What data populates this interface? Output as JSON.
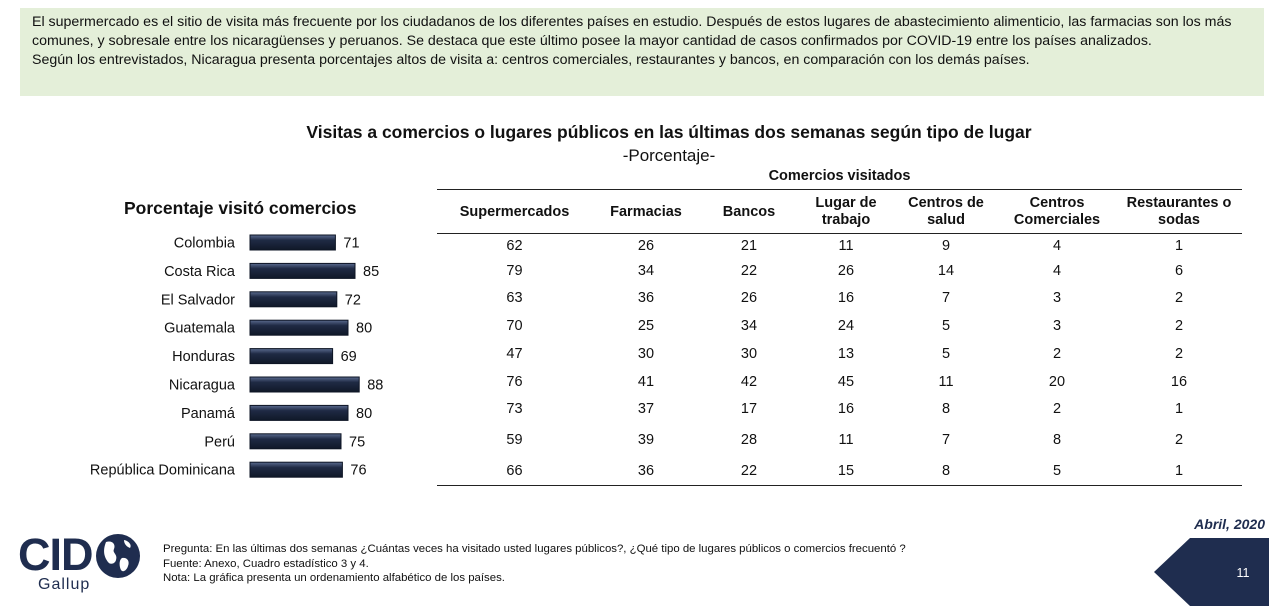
{
  "intro": {
    "line1": "El supermercado es el sitio de visita más frecuente por los ciudadanos de los diferentes países en estudio. Después de estos lugares de abastecimiento alimenticio, las farmacias son los más comunes, y sobresale entre los nicaragüenses y peruanos. Se destaca que este último posee la mayor cantidad de casos confirmados por COVID-19 entre los países analizados.",
    "line2": "Según los entrevistados, Nicaragua presenta porcentajes altos de visita a: centros comerciales, restaurantes y bancos, en comparación con los demás países."
  },
  "chart_title": "Visitas a comercios o lugares públicos en las últimas dos semanas según tipo de lugar",
  "chart_subtitle": "-Porcentaje-",
  "chart_data": {
    "type": "bar",
    "orientation": "horizontal",
    "title": "Porcentaje visitó comercios",
    "categories": [
      "Colombia",
      "Costa Rica",
      "El Salvador",
      "Guatemala",
      "Honduras",
      "Nicaragua",
      "Panamá",
      "Perú",
      "República Dominicana"
    ],
    "values": [
      71,
      85,
      72,
      80,
      69,
      88,
      80,
      75,
      76
    ],
    "xlim": [
      0,
      100
    ],
    "bar_color": "#1f2a44"
  },
  "table": {
    "group_header": "Comercios visitados",
    "columns": [
      [
        "Supermercados"
      ],
      [
        "Farmacias"
      ],
      [
        "Bancos"
      ],
      [
        "Lugar de",
        "trabajo"
      ],
      [
        "Centros de",
        "salud"
      ],
      [
        "Centros",
        "Comerciales"
      ],
      [
        "Restaurantes o",
        "sodas"
      ]
    ],
    "rows": [
      [
        62,
        26,
        21,
        11,
        9,
        4,
        1
      ],
      [
        79,
        34,
        22,
        26,
        14,
        4,
        6
      ],
      [
        63,
        36,
        26,
        16,
        7,
        3,
        2
      ],
      [
        70,
        25,
        34,
        24,
        5,
        3,
        2
      ],
      [
        47,
        30,
        30,
        13,
        5,
        2,
        2
      ],
      [
        76,
        41,
        42,
        45,
        11,
        20,
        16
      ],
      [
        73,
        37,
        17,
        16,
        8,
        2,
        1
      ],
      [
        59,
        39,
        28,
        11,
        7,
        8,
        2
      ],
      [
        66,
        36,
        22,
        15,
        8,
        5,
        1
      ]
    ]
  },
  "logo": {
    "name": "CID",
    "sub": "Gallup"
  },
  "footnotes": {
    "question": "Pregunta: En las últimas dos semanas ¿Cuántas veces ha visitado usted lugares públicos?, ¿Qué tipo de lugares públicos o comercios frecuentó ?",
    "source": "Fuente: Anexo, Cuadro estadístico 3 y 4.",
    "note": "Nota: La gráfica presenta un ordenamiento alfabético de los países."
  },
  "date": "Abril, 2020",
  "page_number": "11",
  "colors": {
    "intro_bg": "#e4efd9",
    "navy": "#1f2d4f"
  }
}
